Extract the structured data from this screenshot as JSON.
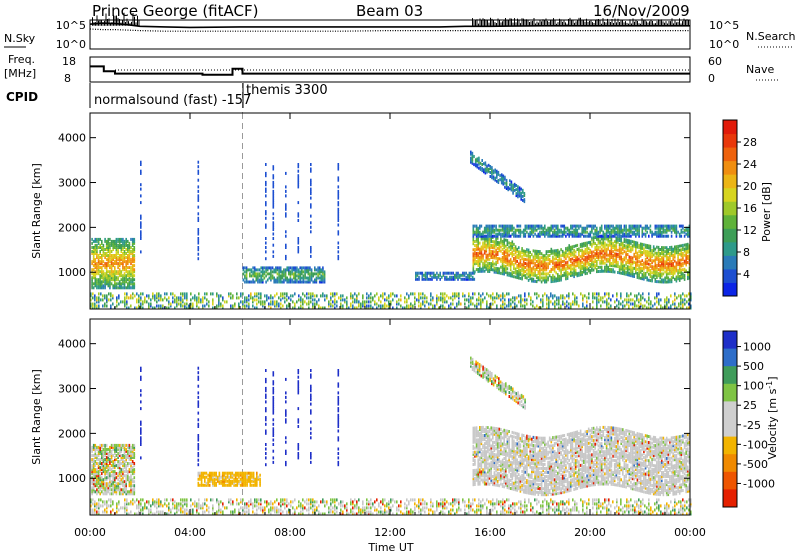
{
  "header": {
    "station": "Prince George (fitACF)",
    "beam": "Beam 03",
    "date": "16/Nov/2009"
  },
  "chart_data": [
    {
      "type": "line",
      "panel": "noise",
      "left_label": "N.Sky",
      "right_label": "N.Search",
      "yticks_left": [
        "10^5",
        "10^0"
      ],
      "yticks_right": [
        "10^5",
        "10^0"
      ],
      "x_hours": [
        0,
        0.5,
        1,
        1.5,
        2,
        3,
        4,
        6,
        8,
        10,
        12,
        14,
        15,
        16,
        18,
        20,
        22,
        24
      ],
      "n_sky": [
        4.6,
        4.8,
        4.7,
        4.5,
        4.2,
        4.1,
        4.0,
        4.1,
        4.1,
        4.1,
        4.1,
        4.1,
        4.2,
        4.2,
        4.3,
        4.3,
        4.3,
        4.3
      ],
      "n_search": [
        3.7,
        3.6,
        3.6,
        3.5,
        3.4,
        3.3,
        3.3,
        3.3,
        3.3,
        3.3,
        3.4,
        3.4,
        3.4,
        3.4,
        3.4,
        3.4,
        3.4,
        3.4
      ]
    },
    {
      "type": "line",
      "panel": "frequency",
      "left_label_1": "Freq.",
      "left_label_2": "[MHz]",
      "right_label": "Nave",
      "yticks_left": [
        "18",
        "8"
      ],
      "yticks_right": [
        "60",
        "0"
      ],
      "freq_steps": [
        [
          0,
          0.55,
          14.5
        ],
        [
          0.55,
          1,
          12.5
        ],
        [
          1,
          4.5,
          11.5
        ],
        [
          4.5,
          5.7,
          11
        ],
        [
          5.7,
          6.1,
          13.5
        ],
        [
          6.1,
          24,
          11.5
        ]
      ],
      "nave_level": 30
    },
    {
      "type": "table",
      "panel": "cpid",
      "label": "CPID",
      "programs": [
        {
          "start_h": 0,
          "end_h": 6.1,
          "text": "normalsound (fast) -157"
        },
        {
          "start_h": 6.1,
          "end_h": 24,
          "text": "themis 3300"
        }
      ]
    },
    {
      "type": "heatmap",
      "panel": "power",
      "ylabel": "Slant Range [km]",
      "yticks": [
        1000,
        2000,
        3000,
        4000
      ],
      "ylim": [
        180,
        4550
      ],
      "colorbar_label": "Power [dB]",
      "colorbar_ticks": [
        4,
        8,
        12,
        16,
        20,
        24,
        28
      ],
      "colorbar_range": [
        0,
        32
      ],
      "colorbar_colors": [
        "#0c25e6",
        "#1d4fd1",
        "#2a7bb8",
        "#2e9a8a",
        "#3d9e57",
        "#5fb23a",
        "#9fc92a",
        "#d7d41f",
        "#ecb515",
        "#f08e10",
        "#ee620d",
        "#e9380b",
        "#e11a0a"
      ],
      "regions": [
        {
          "name": "early-echo",
          "t0": 0.05,
          "t1": 1.75,
          "r0": 650,
          "r1": 1750,
          "core_db": 24
        },
        {
          "name": "dawn-band",
          "t0": 6.1,
          "t1": 9.4,
          "r0": 780,
          "r1": 1100,
          "core_db": 14
        },
        {
          "name": "midday-band",
          "t0": 13.0,
          "t1": 15.4,
          "r0": 840,
          "r1": 1000,
          "core_db": 10
        },
        {
          "name": "evening-band",
          "t0": 15.3,
          "t1": 24,
          "r0": 900,
          "r1": 1700,
          "core_db": 26
        },
        {
          "name": "evening-upper",
          "t0": 15.3,
          "t1": 24,
          "r0": 1800,
          "r1": 2050,
          "core_db": 12
        },
        {
          "name": "dusk-arc",
          "t0": 15.2,
          "t1": 17.4,
          "r0": 2700,
          "r1": 3450,
          "core_db": 10
        }
      ]
    },
    {
      "type": "heatmap",
      "panel": "velocity",
      "ylabel": "Slant Range [km]",
      "yticks": [
        1000,
        2000,
        3000,
        4000
      ],
      "ylim": [
        180,
        4550
      ],
      "xlabel": "Time UT",
      "xticks": [
        "00:00",
        "04:00",
        "08:00",
        "12:00",
        "16:00",
        "20:00",
        "00:00"
      ],
      "xlim_hours": [
        0,
        24
      ],
      "colorbar_label": "Velocity [m s^-1]",
      "colorbar_ticks": [
        "1000",
        "500",
        "100",
        "25",
        "-25",
        "-100",
        "-500",
        "-1000"
      ],
      "colorbar_colors": [
        "#1e2fc8",
        "#2e6ec9",
        "#3f9c5a",
        "#7fc444",
        "#cfcfcf",
        "#cfcfcf",
        "#f2b400",
        "#f08a00",
        "#ee5500",
        "#e52000"
      ],
      "regions": [
        {
          "name": "early-mixed",
          "t0": 0.05,
          "t1": 1.75,
          "r0": 650,
          "r1": 1750,
          "class": "mixed"
        },
        {
          "name": "dawn-positive-range",
          "t0": 4.3,
          "t1": 6.8,
          "r0": 840,
          "r1": 1120,
          "class": "orange"
        },
        {
          "name": "evening-ground",
          "t0": 15.3,
          "t1": 24,
          "r0": 750,
          "r1": 2050,
          "class": "gray"
        }
      ]
    }
  ]
}
